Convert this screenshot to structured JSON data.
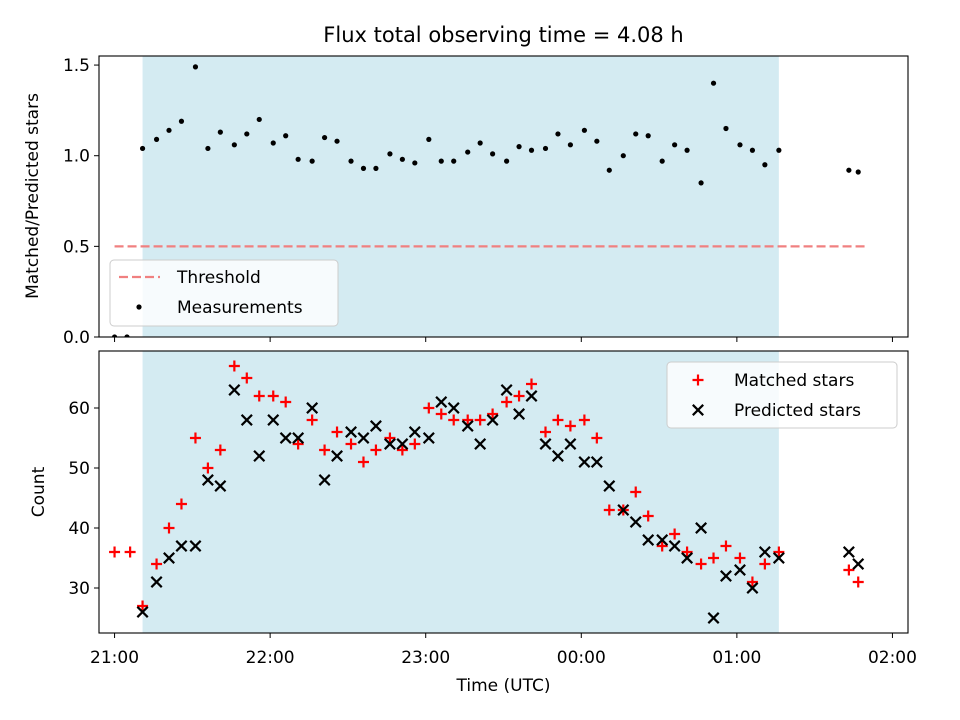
{
  "figure": {
    "title": "Flux total observing time = 4.08 h"
  },
  "chart_data": [
    {
      "type": "scatter",
      "panel": "top",
      "title": "Flux total observing time = 4.08 h",
      "xlabel": "",
      "ylabel": "Matched/Predicted stars",
      "x_unit": "hours since 21:00 UTC",
      "xlim": [
        -0.1,
        5.1
      ],
      "ylim": [
        0.0,
        1.55
      ],
      "yticks": [
        0.0,
        0.5,
        1.0,
        1.5
      ],
      "ytick_labels": [
        "0.0",
        "0.5",
        "1.0",
        "1.5"
      ],
      "shaded_span": {
        "x": [
          0.18,
          4.27
        ],
        "color": "#add8e6"
      },
      "threshold": {
        "name": "Threshold",
        "y": 0.5,
        "x": [
          0.0,
          4.83
        ],
        "color": "#f08080"
      },
      "legend": {
        "position": "lower-left",
        "entries": [
          "Threshold",
          "Measurements"
        ]
      },
      "series": [
        {
          "name": "Measurements",
          "color": "#000000",
          "points": [
            [
              0.0,
              0.0
            ],
            [
              0.08,
              0.0
            ],
            [
              0.18,
              1.04
            ],
            [
              0.27,
              1.09
            ],
            [
              0.35,
              1.14
            ],
            [
              0.43,
              1.19
            ],
            [
              0.52,
              1.49
            ],
            [
              0.6,
              1.04
            ],
            [
              0.68,
              1.13
            ],
            [
              0.77,
              1.06
            ],
            [
              0.85,
              1.12
            ],
            [
              0.93,
              1.2
            ],
            [
              1.02,
              1.07
            ],
            [
              1.1,
              1.11
            ],
            [
              1.18,
              0.98
            ],
            [
              1.27,
              0.97
            ],
            [
              1.35,
              1.1
            ],
            [
              1.43,
              1.08
            ],
            [
              1.52,
              0.97
            ],
            [
              1.6,
              0.93
            ],
            [
              1.68,
              0.93
            ],
            [
              1.77,
              1.01
            ],
            [
              1.85,
              0.98
            ],
            [
              1.93,
              0.96
            ],
            [
              2.02,
              1.09
            ],
            [
              2.1,
              0.97
            ],
            [
              2.18,
              0.97
            ],
            [
              2.27,
              1.02
            ],
            [
              2.35,
              1.07
            ],
            [
              2.43,
              1.01
            ],
            [
              2.52,
              0.97
            ],
            [
              2.6,
              1.05
            ],
            [
              2.68,
              1.03
            ],
            [
              2.77,
              1.04
            ],
            [
              2.85,
              1.12
            ],
            [
              2.93,
              1.06
            ],
            [
              3.02,
              1.14
            ],
            [
              3.1,
              1.08
            ],
            [
              3.18,
              0.92
            ],
            [
              3.27,
              1.0
            ],
            [
              3.35,
              1.12
            ],
            [
              3.43,
              1.11
            ],
            [
              3.52,
              0.97
            ],
            [
              3.6,
              1.06
            ],
            [
              3.68,
              1.03
            ],
            [
              3.77,
              0.85
            ],
            [
              3.85,
              1.4
            ],
            [
              3.93,
              1.15
            ],
            [
              4.02,
              1.06
            ],
            [
              4.1,
              1.03
            ],
            [
              4.18,
              0.95
            ],
            [
              4.27,
              1.03
            ],
            [
              4.72,
              0.92
            ],
            [
              4.78,
              0.91
            ]
          ]
        }
      ]
    },
    {
      "type": "scatter",
      "panel": "bottom",
      "title": "",
      "xlabel": "Time (UTC)",
      "ylabel": "Count",
      "x_unit": "hours since 21:00 UTC",
      "xlim": [
        -0.1,
        5.1
      ],
      "ylim": [
        22.5,
        69.5
      ],
      "xticks": [
        0,
        1,
        2,
        3,
        4,
        5
      ],
      "xtick_labels": [
        "21:00",
        "22:00",
        "23:00",
        "00:00",
        "01:00",
        "02:00"
      ],
      "yticks": [
        30,
        40,
        50,
        60
      ],
      "ytick_labels": [
        "30",
        "40",
        "50",
        "60"
      ],
      "shaded_span": {
        "x": [
          0.18,
          4.27
        ],
        "color": "#add8e6"
      },
      "legend": {
        "position": "top-right",
        "entries": [
          "Matched stars",
          "Predicted stars"
        ]
      },
      "series": [
        {
          "name": "Matched stars",
          "marker": "plus",
          "color": "#ff0000",
          "points": [
            [
              0.0,
              36
            ],
            [
              0.1,
              36
            ],
            [
              0.18,
              27
            ],
            [
              0.27,
              34
            ],
            [
              0.35,
              40
            ],
            [
              0.43,
              44
            ],
            [
              0.52,
              55
            ],
            [
              0.6,
              50
            ],
            [
              0.68,
              53
            ],
            [
              0.77,
              67
            ],
            [
              0.85,
              65
            ],
            [
              0.93,
              62
            ],
            [
              1.02,
              62
            ],
            [
              1.1,
              61
            ],
            [
              1.18,
              54
            ],
            [
              1.27,
              58
            ],
            [
              1.35,
              53
            ],
            [
              1.43,
              56
            ],
            [
              1.52,
              54
            ],
            [
              1.6,
              51
            ],
            [
              1.68,
              53
            ],
            [
              1.77,
              55
            ],
            [
              1.85,
              53
            ],
            [
              1.93,
              54
            ],
            [
              2.02,
              60
            ],
            [
              2.1,
              59
            ],
            [
              2.18,
              58
            ],
            [
              2.27,
              58
            ],
            [
              2.35,
              58
            ],
            [
              2.43,
              59
            ],
            [
              2.52,
              61
            ],
            [
              2.6,
              62
            ],
            [
              2.68,
              64
            ],
            [
              2.77,
              56
            ],
            [
              2.85,
              58
            ],
            [
              2.93,
              57
            ],
            [
              3.02,
              58
            ],
            [
              3.1,
              55
            ],
            [
              3.18,
              43
            ],
            [
              3.27,
              43
            ],
            [
              3.35,
              46
            ],
            [
              3.43,
              42
            ],
            [
              3.52,
              37
            ],
            [
              3.6,
              39
            ],
            [
              3.68,
              36
            ],
            [
              3.77,
              34
            ],
            [
              3.85,
              35
            ],
            [
              3.93,
              37
            ],
            [
              4.02,
              35
            ],
            [
              4.1,
              31
            ],
            [
              4.18,
              34
            ],
            [
              4.27,
              36
            ],
            [
              4.72,
              33
            ],
            [
              4.78,
              31
            ]
          ]
        },
        {
          "name": "Predicted stars",
          "marker": "x",
          "color": "#000000",
          "points": [
            [
              0.18,
              26
            ],
            [
              0.27,
              31
            ],
            [
              0.35,
              35
            ],
            [
              0.43,
              37
            ],
            [
              0.52,
              37
            ],
            [
              0.6,
              48
            ],
            [
              0.68,
              47
            ],
            [
              0.77,
              63
            ],
            [
              0.85,
              58
            ],
            [
              0.93,
              52
            ],
            [
              1.02,
              58
            ],
            [
              1.1,
              55
            ],
            [
              1.18,
              55
            ],
            [
              1.27,
              60
            ],
            [
              1.35,
              48
            ],
            [
              1.43,
              52
            ],
            [
              1.52,
              56
            ],
            [
              1.6,
              55
            ],
            [
              1.68,
              57
            ],
            [
              1.77,
              54
            ],
            [
              1.85,
              54
            ],
            [
              1.93,
              56
            ],
            [
              2.02,
              55
            ],
            [
              2.1,
              61
            ],
            [
              2.18,
              60
            ],
            [
              2.27,
              57
            ],
            [
              2.35,
              54
            ],
            [
              2.43,
              58
            ],
            [
              2.52,
              63
            ],
            [
              2.6,
              59
            ],
            [
              2.68,
              62
            ],
            [
              2.77,
              54
            ],
            [
              2.85,
              52
            ],
            [
              2.93,
              54
            ],
            [
              3.02,
              51
            ],
            [
              3.1,
              51
            ],
            [
              3.18,
              47
            ],
            [
              3.27,
              43
            ],
            [
              3.35,
              41
            ],
            [
              3.43,
              38
            ],
            [
              3.52,
              38
            ],
            [
              3.6,
              37
            ],
            [
              3.68,
              35
            ],
            [
              3.77,
              40
            ],
            [
              3.85,
              25
            ],
            [
              3.93,
              32
            ],
            [
              4.02,
              33
            ],
            [
              4.1,
              30
            ],
            [
              4.18,
              36
            ],
            [
              4.27,
              35
            ],
            [
              4.72,
              36
            ],
            [
              4.78,
              34
            ]
          ]
        }
      ]
    }
  ]
}
